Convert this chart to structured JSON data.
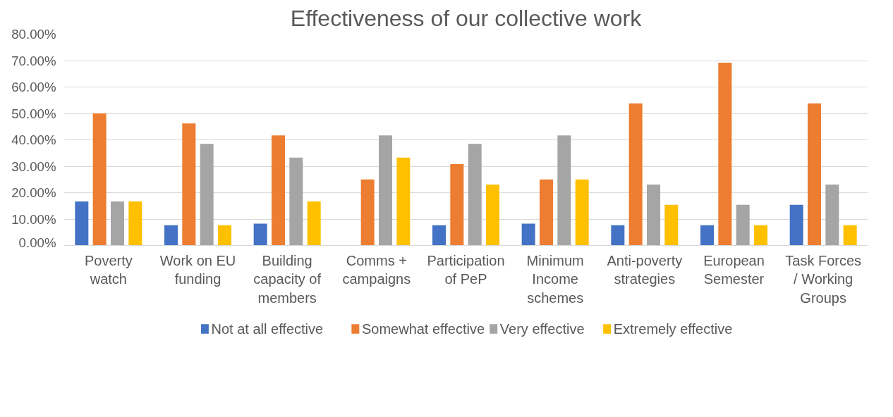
{
  "chart_data": {
    "type": "bar",
    "title": "Effectiveness of our collective work",
    "categories": [
      "Poverty watch",
      "Work on EU funding",
      "Building capacity of members",
      "Comms + campaigns",
      "Participation of PeP",
      "Minimum Income schemes",
      "Anti-poverty strategies",
      "European Semester",
      "Task Forces / Working Groups"
    ],
    "series": [
      {
        "name": "Not at all effective",
        "color": "#4472c4",
        "values": [
          16.7,
          7.7,
          8.3,
          0,
          7.7,
          8.3,
          7.7,
          7.7,
          15.4
        ]
      },
      {
        "name": "Somewhat effective",
        "color": "#ed7d31",
        "values": [
          50.0,
          46.2,
          41.7,
          25.0,
          30.8,
          25.0,
          53.8,
          69.2,
          53.8
        ]
      },
      {
        "name": "Very effective",
        "color": "#a5a5a5",
        "values": [
          16.7,
          38.5,
          33.3,
          41.7,
          38.5,
          41.7,
          23.1,
          15.4,
          23.1
        ]
      },
      {
        "name": "Extremely effective",
        "color": "#ffc000",
        "values": [
          16.7,
          7.7,
          16.7,
          33.3,
          23.1,
          25.0,
          15.4,
          7.7,
          7.7
        ]
      }
    ],
    "ylim": [
      0,
      80
    ],
    "yticks": [
      {
        "value": 0,
        "label": "0.00%"
      },
      {
        "value": 10,
        "label": "10.00%"
      },
      {
        "value": 20,
        "label": "20.00%"
      },
      {
        "value": 30,
        "label": "30.00%"
      },
      {
        "value": 40,
        "label": "40.00%"
      },
      {
        "value": 50,
        "label": "50.00%"
      },
      {
        "value": 60,
        "label": "60.00%"
      },
      {
        "value": 70,
        "label": "70.00%"
      },
      {
        "value": 80,
        "label": "80.00%"
      }
    ],
    "grid": "y",
    "legend": "bottom"
  }
}
